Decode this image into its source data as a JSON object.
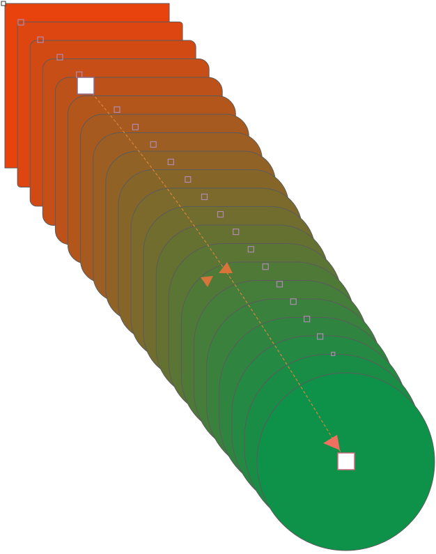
{
  "blend": {
    "steps": 20,
    "start_shape": "square",
    "end_shape": "circle",
    "start_color": "#e8420d",
    "end_color": "#0e9149",
    "outline_color": "#5b5b5b",
    "path_color": "#d8853a",
    "node_handle_color": "#b08ab0",
    "end_handle_fill": "#ffffff",
    "end_handle_stroke": "#c86a7a",
    "arrow_mid_color": "#d8743a",
    "arrow_end_color": "#f07060"
  },
  "icons": {
    "corner_handle": "corner-handle-icon",
    "path_arrow": "direction-arrow-icon"
  }
}
